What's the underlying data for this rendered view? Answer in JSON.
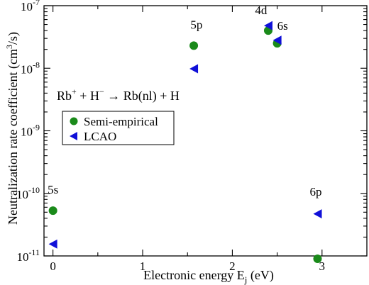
{
  "chart_data": {
    "type": "scatter",
    "xlabel": "Electronic energy E_j (eV)",
    "xlabel_main": "Electronic energy E",
    "xlabel_sub": "j",
    "xlabel_unit": " (eV)",
    "ylabel_main": "Neutralization rate coefficient (cm",
    "ylabel_sup": "3",
    "ylabel_unit": "/s)",
    "y_scale": "log",
    "xlim": [
      -0.1,
      3.5
    ],
    "ylim": [
      1e-11,
      1e-07
    ],
    "x_ticks": [
      0,
      1,
      2,
      3
    ],
    "x_tick_labels": [
      "0",
      "1",
      "2",
      "3"
    ],
    "y_ticks": [
      1e-11,
      1e-10,
      1e-09,
      1e-08,
      1e-07
    ],
    "y_tick_labels": [
      {
        "base": "10",
        "exp": "-11"
      },
      {
        "base": "10",
        "exp": "-10"
      },
      {
        "base": "10",
        "exp": "-9"
      },
      {
        "base": "10",
        "exp": "-8"
      },
      {
        "base": "10",
        "exp": "-7"
      }
    ],
    "series": [
      {
        "name": "Semi-empirical",
        "marker": "circle",
        "color": "#1a8a1a",
        "points": [
          {
            "x": 0.0,
            "y": 5.3e-11
          },
          {
            "x": 1.57,
            "y": 2.3e-08
          },
          {
            "x": 2.4,
            "y": 4e-08
          },
          {
            "x": 2.5,
            "y": 2.5e-08
          },
          {
            "x": 2.95,
            "y": 9e-12
          }
        ]
      },
      {
        "name": "LCAO",
        "marker": "triangle-left",
        "color": "#1010d8",
        "points": [
          {
            "x": 0.0,
            "y": 1.55e-11
          },
          {
            "x": 1.57,
            "y": 9.8e-09
          },
          {
            "x": 2.4,
            "y": 4.8e-08
          },
          {
            "x": 2.5,
            "y": 2.8e-08
          },
          {
            "x": 2.95,
            "y": 4.7e-11
          }
        ]
      }
    ],
    "annotations": [
      {
        "text": "5s",
        "x": 0.0,
        "y": 1e-10
      },
      {
        "text": "5p",
        "x": 1.6,
        "y": 4.3e-08
      },
      {
        "text": "4d",
        "x": 2.32,
        "y": 7.3e-08
      },
      {
        "text": "6s",
        "x": 2.56,
        "y": 4.1e-08
      },
      {
        "text": "6p",
        "x": 2.93,
        "y": 9.2e-11
      }
    ],
    "equation": {
      "rb": "Rb",
      "rb_sup": "+",
      "plus_h": " + H",
      "h_sup": "−",
      "arrow": " → Rb(nl) + H"
    },
    "legend_position": "middle-left",
    "grid": false
  }
}
